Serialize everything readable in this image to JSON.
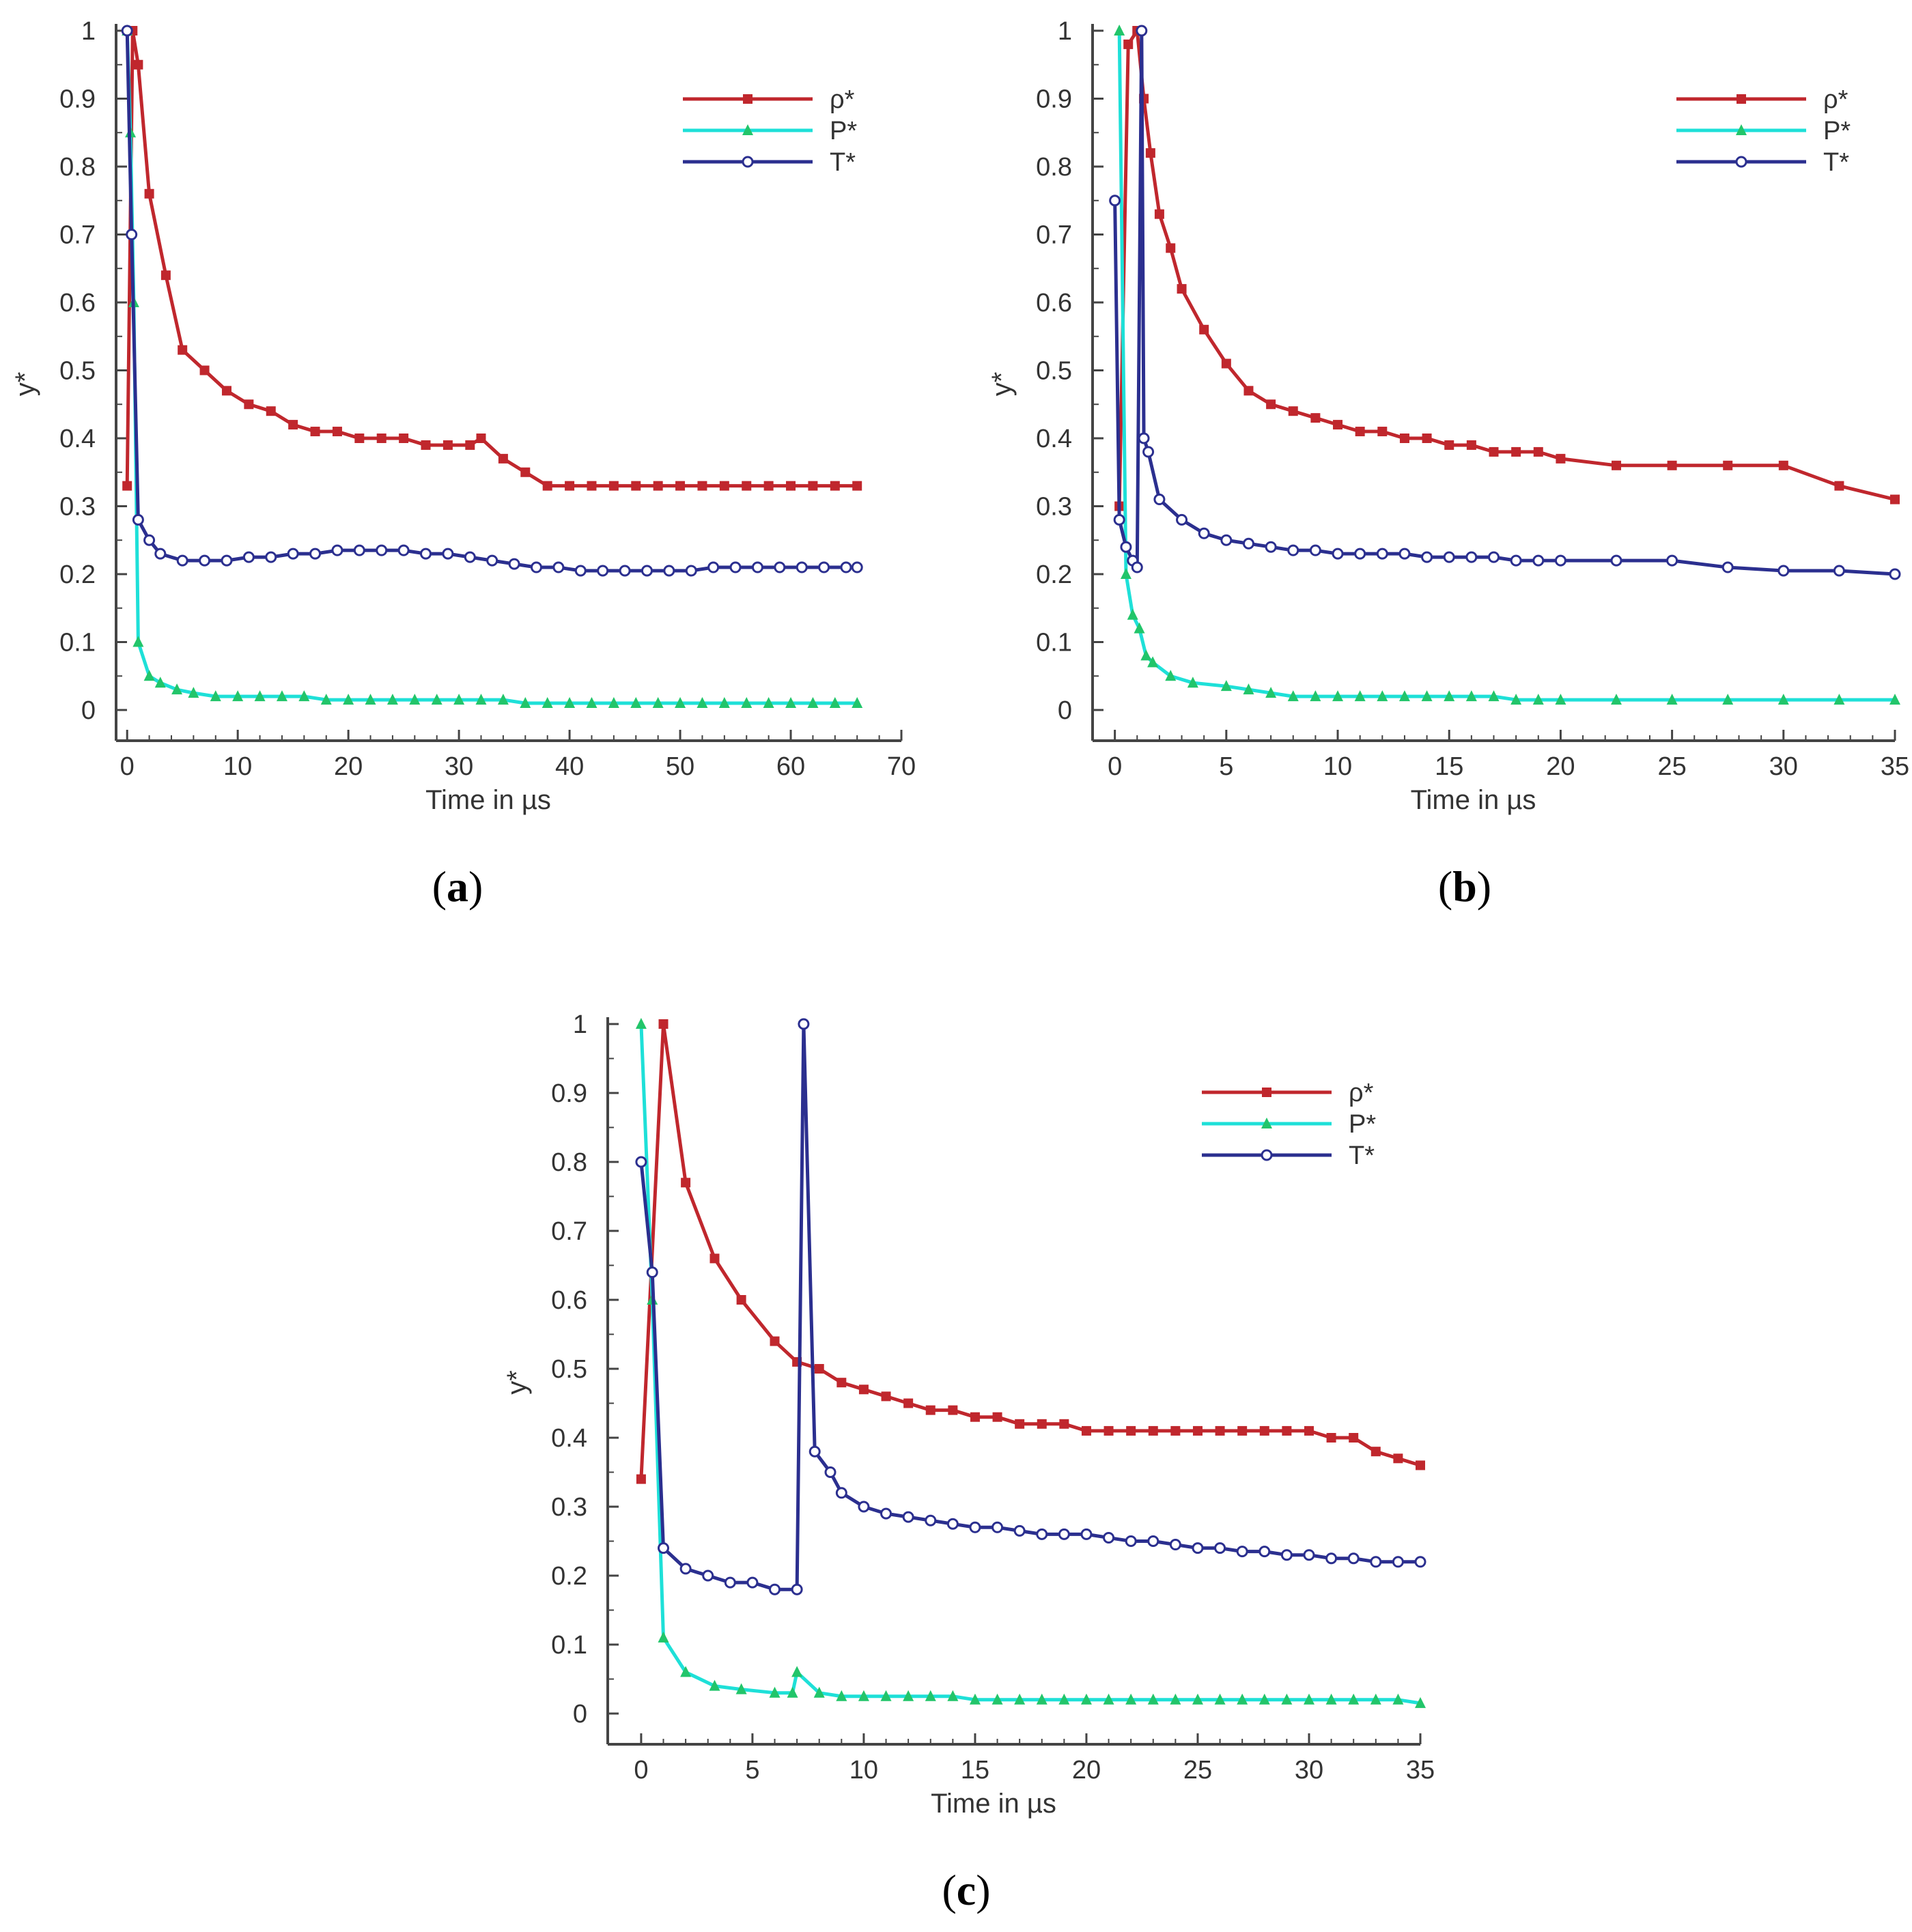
{
  "chart_data": [
    {
      "type": "line",
      "panel": "a",
      "caption": "(a)",
      "caption_letter": "a",
      "xlabel": "Time in µs",
      "ylabel": "y*",
      "xlim": [
        -1,
        70
      ],
      "ylim": [
        0,
        1
      ],
      "xticks": [
        0,
        10,
        20,
        30,
        40,
        50,
        60,
        70
      ],
      "yticks": [
        0,
        0.1,
        0.2,
        0.3,
        0.4,
        0.5,
        0.6,
        0.7,
        0.8,
        0.9,
        1
      ],
      "legend_position": "top-right",
      "series": [
        {
          "name": "ρ*",
          "color": "#c0272d",
          "marker": "square",
          "x": [
            0,
            0.5,
            1,
            2,
            3.5,
            5,
            7,
            9,
            11,
            13,
            15,
            17,
            19,
            21,
            23,
            25,
            27,
            29,
            31,
            32,
            34,
            36,
            38,
            40,
            42,
            44,
            46,
            48,
            50,
            52,
            54,
            56,
            58,
            60,
            62,
            64,
            66
          ],
          "y": [
            0.33,
            1.0,
            0.95,
            0.76,
            0.64,
            0.53,
            0.5,
            0.47,
            0.45,
            0.44,
            0.42,
            0.41,
            0.41,
            0.4,
            0.4,
            0.4,
            0.39,
            0.39,
            0.39,
            0.4,
            0.37,
            0.35,
            0.33,
            0.33,
            0.33,
            0.33,
            0.33,
            0.33,
            0.33,
            0.33,
            0.33,
            0.33,
            0.33,
            0.33,
            0.33,
            0.33,
            0.33
          ]
        },
        {
          "name": "P*",
          "color": "#1ee0d8",
          "marker": "triangle",
          "x": [
            0,
            0.3,
            0.6,
            1,
            2,
            3,
            4.5,
            6,
            8,
            10,
            12,
            14,
            16,
            18,
            20,
            22,
            24,
            26,
            28,
            30,
            32,
            34,
            36,
            38,
            40,
            42,
            44,
            46,
            48,
            50,
            52,
            54,
            56,
            58,
            60,
            62,
            64,
            66
          ],
          "y": [
            1.0,
            0.85,
            0.6,
            0.1,
            0.05,
            0.04,
            0.03,
            0.025,
            0.02,
            0.02,
            0.02,
            0.02,
            0.02,
            0.015,
            0.015,
            0.015,
            0.015,
            0.015,
            0.015,
            0.015,
            0.015,
            0.015,
            0.01,
            0.01,
            0.01,
            0.01,
            0.01,
            0.01,
            0.01,
            0.01,
            0.01,
            0.01,
            0.01,
            0.01,
            0.01,
            0.01,
            0.01,
            0.01
          ]
        },
        {
          "name": "T*",
          "color": "#2b2f8f",
          "marker": "circle",
          "x": [
            0,
            0.4,
            1,
            2,
            3,
            5,
            7,
            9,
            11,
            13,
            15,
            17,
            19,
            21,
            23,
            25,
            27,
            29,
            31,
            33,
            35,
            37,
            39,
            41,
            43,
            45,
            47,
            49,
            51,
            53,
            55,
            57,
            59,
            61,
            63,
            65,
            66
          ],
          "y": [
            1.0,
            0.7,
            0.28,
            0.25,
            0.23,
            0.22,
            0.22,
            0.22,
            0.225,
            0.225,
            0.23,
            0.23,
            0.235,
            0.235,
            0.235,
            0.235,
            0.23,
            0.23,
            0.225,
            0.22,
            0.215,
            0.21,
            0.21,
            0.205,
            0.205,
            0.205,
            0.205,
            0.205,
            0.205,
            0.21,
            0.21,
            0.21,
            0.21,
            0.21,
            0.21,
            0.21,
            0.21
          ]
        }
      ]
    },
    {
      "type": "line",
      "panel": "b",
      "caption": "(b)",
      "caption_letter": "b",
      "xlabel": "Time in µs",
      "ylabel": "y*",
      "xlim": [
        -1,
        35
      ],
      "ylim": [
        0,
        1
      ],
      "xticks": [
        0,
        5,
        10,
        15,
        20,
        25,
        30,
        35
      ],
      "yticks": [
        0,
        0.1,
        0.2,
        0.3,
        0.4,
        0.5,
        0.6,
        0.7,
        0.8,
        0.9,
        1
      ],
      "legend_position": "top-right",
      "series": [
        {
          "name": "ρ*",
          "color": "#c0272d",
          "marker": "square",
          "x": [
            0.2,
            0.6,
            1.0,
            1.3,
            1.6,
            2,
            2.5,
            3,
            4,
            5,
            6,
            7,
            8,
            9,
            10,
            11,
            12,
            13,
            14,
            15,
            16,
            17,
            18,
            19,
            20,
            22.5,
            25,
            27.5,
            30,
            32.5,
            35
          ],
          "y": [
            0.3,
            0.98,
            1.0,
            0.9,
            0.82,
            0.73,
            0.68,
            0.62,
            0.56,
            0.51,
            0.47,
            0.45,
            0.44,
            0.43,
            0.42,
            0.41,
            0.41,
            0.4,
            0.4,
            0.39,
            0.39,
            0.38,
            0.38,
            0.38,
            0.37,
            0.36,
            0.36,
            0.36,
            0.36,
            0.33,
            0.31
          ]
        },
        {
          "name": "P*",
          "color": "#1ee0d8",
          "marker": "triangle",
          "x": [
            0.2,
            0.5,
            0.8,
            1.1,
            1.4,
            1.7,
            2.5,
            3.5,
            5,
            6,
            7,
            8,
            9,
            10,
            11,
            12,
            13,
            14,
            15,
            16,
            17,
            18,
            19,
            20,
            22.5,
            25,
            27.5,
            30,
            32.5,
            35
          ],
          "y": [
            1.0,
            0.2,
            0.14,
            0.12,
            0.08,
            0.07,
            0.05,
            0.04,
            0.035,
            0.03,
            0.025,
            0.02,
            0.02,
            0.02,
            0.02,
            0.02,
            0.02,
            0.02,
            0.02,
            0.02,
            0.02,
            0.015,
            0.015,
            0.015,
            0.015,
            0.015,
            0.015,
            0.015,
            0.015,
            0.015
          ]
        },
        {
          "name": "T*",
          "color": "#2b2f8f",
          "marker": "circle",
          "x": [
            0,
            0.2,
            0.5,
            0.8,
            1.0,
            1.2,
            1.3,
            1.5,
            2,
            3,
            4,
            5,
            6,
            7,
            8,
            9,
            10,
            11,
            12,
            13,
            14,
            15,
            16,
            17,
            18,
            19,
            20,
            22.5,
            25,
            27.5,
            30,
            32.5,
            35
          ],
          "y": [
            0.75,
            0.28,
            0.24,
            0.22,
            0.21,
            1.0,
            0.4,
            0.38,
            0.31,
            0.28,
            0.26,
            0.25,
            0.245,
            0.24,
            0.235,
            0.235,
            0.23,
            0.23,
            0.23,
            0.23,
            0.225,
            0.225,
            0.225,
            0.225,
            0.22,
            0.22,
            0.22,
            0.22,
            0.22,
            0.21,
            0.205,
            0.205,
            0.2
          ]
        }
      ]
    },
    {
      "type": "line",
      "panel": "c",
      "caption": "(c)",
      "caption_letter": "c",
      "xlabel": "Time in µs",
      "ylabel": "y*",
      "xlim": [
        -1.5,
        35
      ],
      "ylim": [
        0,
        1
      ],
      "xticks": [
        0,
        5,
        10,
        15,
        20,
        25,
        30,
        35
      ],
      "yticks": [
        0,
        0.1,
        0.2,
        0.3,
        0.4,
        0.5,
        0.6,
        0.7,
        0.8,
        0.9,
        1
      ],
      "legend_position": "top-right",
      "series": [
        {
          "name": "ρ*",
          "color": "#c0272d",
          "marker": "square",
          "x": [
            0,
            1,
            2,
            3.3,
            4.5,
            6,
            7,
            8,
            9,
            10,
            11,
            12,
            13,
            14,
            15,
            16,
            17,
            18,
            19,
            20,
            21,
            22,
            23,
            24,
            25,
            26,
            27,
            28,
            29,
            30,
            31,
            32,
            33,
            34,
            35
          ],
          "y": [
            0.34,
            1.0,
            0.77,
            0.66,
            0.6,
            0.54,
            0.51,
            0.5,
            0.48,
            0.47,
            0.46,
            0.45,
            0.44,
            0.44,
            0.43,
            0.43,
            0.42,
            0.42,
            0.42,
            0.41,
            0.41,
            0.41,
            0.41,
            0.41,
            0.41,
            0.41,
            0.41,
            0.41,
            0.41,
            0.41,
            0.4,
            0.4,
            0.38,
            0.37,
            0.36
          ]
        },
        {
          "name": "P*",
          "color": "#1ee0d8",
          "marker": "triangle",
          "x": [
            0,
            0.5,
            1,
            2,
            3.3,
            4.5,
            6,
            6.8,
            7,
            8,
            9,
            10,
            11,
            12,
            13,
            14,
            15,
            16,
            17,
            18,
            19,
            20,
            21,
            22,
            23,
            24,
            25,
            26,
            27,
            28,
            29,
            30,
            31,
            32,
            33,
            34,
            35
          ],
          "y": [
            1.0,
            0.6,
            0.11,
            0.06,
            0.04,
            0.035,
            0.03,
            0.03,
            0.06,
            0.03,
            0.025,
            0.025,
            0.025,
            0.025,
            0.025,
            0.025,
            0.02,
            0.02,
            0.02,
            0.02,
            0.02,
            0.02,
            0.02,
            0.02,
            0.02,
            0.02,
            0.02,
            0.02,
            0.02,
            0.02,
            0.02,
            0.02,
            0.02,
            0.02,
            0.02,
            0.02,
            0.015
          ]
        },
        {
          "name": "T*",
          "color": "#2b2f8f",
          "marker": "circle",
          "x": [
            0,
            0.5,
            1,
            2,
            3,
            4,
            5,
            6,
            7,
            7.3,
            7.8,
            8.5,
            9,
            10,
            11,
            12,
            13,
            14,
            15,
            16,
            17,
            18,
            19,
            20,
            21,
            22,
            23,
            24,
            25,
            26,
            27,
            28,
            29,
            30,
            31,
            32,
            33,
            34,
            35
          ],
          "y": [
            0.8,
            0.64,
            0.24,
            0.21,
            0.2,
            0.19,
            0.19,
            0.18,
            0.18,
            1.0,
            0.38,
            0.35,
            0.32,
            0.3,
            0.29,
            0.285,
            0.28,
            0.275,
            0.27,
            0.27,
            0.265,
            0.26,
            0.26,
            0.26,
            0.255,
            0.25,
            0.25,
            0.245,
            0.24,
            0.24,
            0.235,
            0.235,
            0.23,
            0.23,
            0.225,
            0.225,
            0.22,
            0.22,
            0.22
          ]
        }
      ]
    }
  ]
}
